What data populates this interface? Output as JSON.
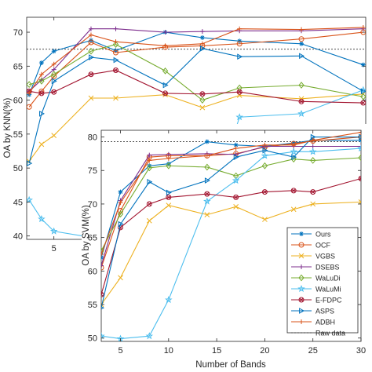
{
  "chart_data": [
    {
      "id": "knn",
      "type": "line",
      "ylabel": "OA by KNN(%)",
      "xlabel": "",
      "ylim": [
        39.5,
        72.2
      ],
      "yticks": [
        40,
        45,
        50,
        55,
        60,
        65,
        70
      ],
      "xticks": [
        5
      ],
      "grid": false,
      "reference_line": {
        "name": "Raw data",
        "y": 67.5
      },
      "series": [
        {
          "name": "Ours",
          "color": "#0072bd",
          "marker": "asterisk",
          "x": [
            3,
            4,
            5,
            8,
            10,
            14,
            17,
            20,
            25,
            30
          ],
          "y": [
            60.8,
            65.5,
            67.2,
            68.8,
            67.3,
            70.0,
            69.2,
            68.7,
            68.3,
            65.2
          ]
        },
        {
          "name": "OCF",
          "color": "#d95319",
          "marker": "circle",
          "x": [
            3,
            4,
            5,
            8,
            10,
            14,
            17,
            20,
            25,
            30
          ],
          "y": [
            59.0,
            61.3,
            63.5,
            68.5,
            67.0,
            67.8,
            68.0,
            68.3,
            69.0,
            70.0
          ]
        },
        {
          "name": "VGBS",
          "color": "#edb120",
          "marker": "x",
          "x": [
            3,
            4,
            5,
            8,
            10,
            14,
            17,
            20,
            25,
            30
          ],
          "y": [
            51.0,
            53.5,
            54.8,
            60.3,
            60.3,
            60.8,
            58.9,
            60.7,
            60.2,
            60.9
          ]
        },
        {
          "name": "DSEBS",
          "color": "#7e2f8e",
          "marker": "plus",
          "x": [
            3,
            4,
            5,
            8,
            10,
            14,
            17,
            20,
            25,
            30
          ],
          "y": [
            61.3,
            63.0,
            64.5,
            70.5,
            70.5,
            70.0,
            70.1,
            70.2,
            70.2,
            70.5
          ]
        },
        {
          "name": "WaLuDi",
          "color": "#77ac30",
          "marker": "diamond",
          "x": [
            3,
            4,
            5,
            8,
            10,
            14,
            17,
            20,
            25,
            30
          ],
          "y": [
            62.3,
            62.8,
            63.8,
            67.2,
            68.2,
            64.3,
            60.0,
            61.8,
            62.2,
            60.5
          ]
        },
        {
          "name": "WaLuMi",
          "color": "#4dbeee",
          "marker": "star",
          "x": [
            3,
            4,
            5,
            8,
            10,
            14,
            17,
            20,
            25,
            30
          ],
          "y": [
            45.3,
            42.5,
            40.7,
            39.8,
            39.8,
            40.0,
            40.5,
            57.5,
            58.0,
            61.5
          ]
        },
        {
          "name": "E-FDPC",
          "color": "#a2142f",
          "marker": "circle-x",
          "x": [
            3,
            4,
            5,
            8,
            10,
            14,
            17,
            20,
            25,
            30
          ],
          "y": [
            61.3,
            61.0,
            61.2,
            63.8,
            64.4,
            61.0,
            60.9,
            61.2,
            59.8,
            59.6
          ]
        },
        {
          "name": "ASPS",
          "color": "#0072bd",
          "marker": "triangle-right",
          "x": [
            3,
            4,
            5,
            8,
            10,
            14,
            17,
            20,
            25,
            30
          ],
          "y": [
            50.7,
            58.0,
            62.8,
            66.3,
            65.9,
            62.2,
            67.6,
            66.4,
            66.5,
            61.3
          ]
        },
        {
          "name": "ADBH",
          "color": "#d95319",
          "marker": "plus",
          "x": [
            3,
            4,
            5,
            8,
            10,
            14,
            17,
            20,
            25,
            30
          ],
          "y": [
            61.0,
            63.8,
            65.3,
            69.6,
            68.6,
            68.0,
            68.3,
            70.5,
            70.4,
            70.7
          ]
        }
      ]
    },
    {
      "id": "svm",
      "type": "line",
      "ylabel": "OA by SVM(%)",
      "xlabel": "Number of Bands",
      "xlim": [
        3,
        30
      ],
      "ylim": [
        49.5,
        81
      ],
      "xticks": [
        5,
        10,
        15,
        20,
        25,
        30
      ],
      "yticks": [
        50,
        55,
        60,
        65,
        70,
        75,
        80
      ],
      "grid": false,
      "legend": "bottom-right",
      "reference_line": {
        "name": "Raw data",
        "y": 79.3
      },
      "series": [
        {
          "name": "Ours",
          "color": "#0072bd",
          "marker": "asterisk",
          "x": [
            3,
            5,
            8,
            10,
            14,
            17,
            20,
            23,
            25,
            30
          ],
          "y": [
            62.0,
            71.8,
            75.7,
            76.0,
            79.3,
            78.8,
            78.6,
            79.1,
            79.5,
            79.5
          ]
        },
        {
          "name": "OCF",
          "color": "#d95319",
          "marker": "circle",
          "x": [
            3,
            5,
            8,
            10,
            14,
            17,
            20,
            23,
            25,
            30
          ],
          "y": [
            60.5,
            69.0,
            77.0,
            77.2,
            77.2,
            77.5,
            78.5,
            79.0,
            79.4,
            80.0
          ]
        },
        {
          "name": "VGBS",
          "color": "#edb120",
          "marker": "x",
          "x": [
            3,
            5,
            8,
            10,
            14,
            17,
            20,
            23,
            25,
            30
          ],
          "y": [
            55.0,
            59.0,
            67.5,
            69.8,
            68.4,
            69.6,
            67.7,
            69.2,
            70.0,
            70.3
          ]
        },
        {
          "name": "DSEBS",
          "color": "#7e2f8e",
          "marker": "plus",
          "x": [
            3,
            5,
            8,
            10,
            14,
            17,
            20,
            23,
            25,
            30
          ],
          "y": [
            60.8,
            70.5,
            77.3,
            77.4,
            77.5,
            77.4,
            78.6,
            78.6,
            78.6,
            78.6
          ]
        },
        {
          "name": "WaLuDi",
          "color": "#77ac30",
          "marker": "diamond",
          "x": [
            3,
            5,
            8,
            10,
            14,
            17,
            20,
            23,
            25,
            30
          ],
          "y": [
            63.0,
            68.5,
            75.4,
            75.7,
            75.5,
            74.2,
            75.7,
            76.7,
            76.5,
            76.9
          ]
        },
        {
          "name": "WaLuMi",
          "color": "#4dbeee",
          "marker": "star",
          "x": [
            3,
            5,
            8,
            10,
            14,
            17,
            20,
            23,
            25,
            30
          ],
          "y": [
            50.3,
            49.9,
            50.3,
            55.7,
            70.4,
            73.5,
            77.2,
            77.8,
            77.8,
            78.3
          ]
        },
        {
          "name": "E-FDPC",
          "color": "#a2142f",
          "marker": "circle-x",
          "x": [
            3,
            5,
            8,
            10,
            14,
            17,
            20,
            23,
            25,
            30
          ],
          "y": [
            56.5,
            66.5,
            70.0,
            71.0,
            71.5,
            71.0,
            71.8,
            72.0,
            71.8,
            73.8
          ]
        },
        {
          "name": "ASPS",
          "color": "#0072bd",
          "marker": "triangle-right",
          "x": [
            3,
            5,
            8,
            10,
            14,
            17,
            20,
            23,
            25,
            30
          ],
          "y": [
            54.5,
            67.0,
            73.3,
            71.7,
            73.5,
            77.0,
            78.0,
            77.0,
            80.0,
            80.0
          ]
        },
        {
          "name": "ADBH",
          "color": "#d95319",
          "marker": "plus",
          "x": [
            3,
            5,
            8,
            10,
            14,
            17,
            20,
            23,
            25,
            30
          ],
          "y": [
            62.5,
            70.2,
            76.5,
            76.8,
            77.2,
            78.3,
            78.8,
            78.8,
            79.5,
            80.7
          ]
        }
      ]
    }
  ]
}
